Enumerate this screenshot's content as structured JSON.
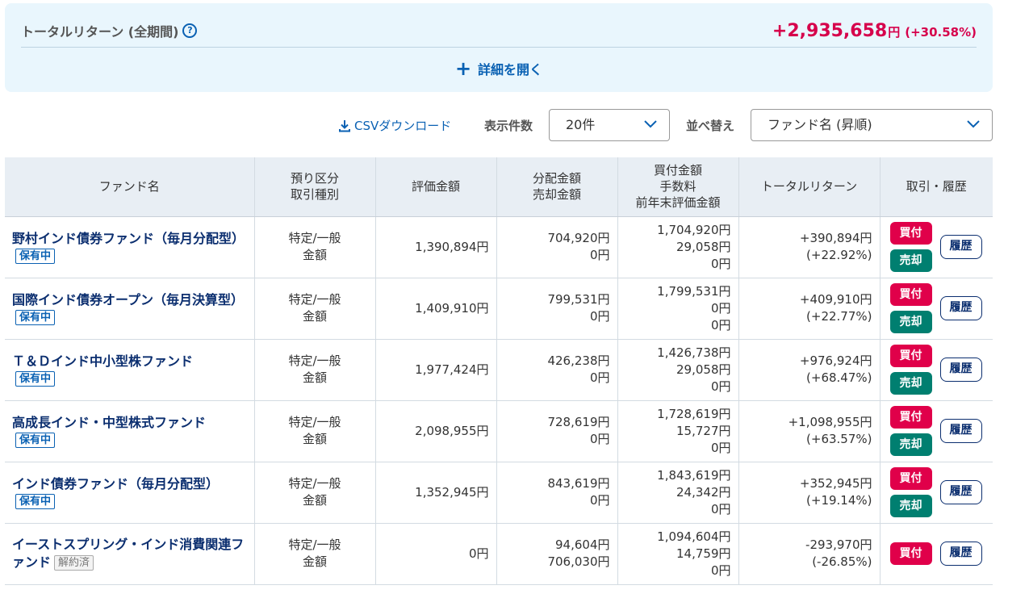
{
  "summary": {
    "label": "トータルリターン (全期間)",
    "help_glyph": "?",
    "amount": "+2,935,658",
    "unit": "円",
    "percent": "(+30.58%)",
    "expand_glyph": "+",
    "expand_label": "詳細を開く"
  },
  "toolbar": {
    "csv_label": "CSVダウンロード",
    "count_label": "表示件数",
    "count_value": "20件",
    "sort_label": "並べ替え",
    "sort_value": "ファンド名 (昇順)"
  },
  "table": {
    "headers": {
      "name": "ファンド名",
      "account_1": "預り区分",
      "account_2": "取引種別",
      "valuation": "評価金額",
      "dist_1": "分配金額",
      "dist_2": "売却金額",
      "buy_1": "買付金額",
      "buy_2": "手数料",
      "buy_3": "前年末評価金額",
      "total_return": "トータルリターン",
      "actions": "取引・履歴"
    },
    "buy_label": "買付",
    "sell_label": "売却",
    "history_label": "履歴",
    "rows": [
      {
        "name": "野村インド債券ファンド（毎月分配型）",
        "badge": "保有中",
        "account": "特定/一般",
        "type": "金額",
        "valuation": "1,390,894円",
        "distribution": "704,920円",
        "sold": "0円",
        "purchase": "1,704,920円",
        "fee": "29,058円",
        "prev_year": "0円",
        "return_amount": "+390,894円",
        "return_pct": "(+22.92%)"
      },
      {
        "name": "国際インド債券オープン（毎月決算型）",
        "badge": "保有中",
        "account": "特定/一般",
        "type": "金額",
        "valuation": "1,409,910円",
        "distribution": "799,531円",
        "sold": "0円",
        "purchase": "1,799,531円",
        "fee": "0円",
        "prev_year": "0円",
        "return_amount": "+409,910円",
        "return_pct": "(+22.77%)"
      },
      {
        "name": "Ｔ＆Ｄインド中小型株ファンド",
        "badge": "保有中",
        "account": "特定/一般",
        "type": "金額",
        "valuation": "1,977,424円",
        "distribution": "426,238円",
        "sold": "0円",
        "purchase": "1,426,738円",
        "fee": "29,058円",
        "prev_year": "0円",
        "return_amount": "+976,924円",
        "return_pct": "(+68.47%)"
      },
      {
        "name": "高成長インド・中型株式ファンド",
        "badge": "保有中",
        "account": "特定/一般",
        "type": "金額",
        "valuation": "2,098,955円",
        "distribution": "728,619円",
        "sold": "0円",
        "purchase": "1,728,619円",
        "fee": "15,727円",
        "prev_year": "0円",
        "return_amount": "+1,098,955円",
        "return_pct": "(+63.57%)"
      },
      {
        "name": "インド債券ファンド（毎月分配型）",
        "badge": "保有中",
        "account": "特定/一般",
        "type": "金額",
        "valuation": "1,352,945円",
        "distribution": "843,619円",
        "sold": "0円",
        "purchase": "1,843,619円",
        "fee": "24,342円",
        "prev_year": "0円",
        "return_amount": "+352,945円",
        "return_pct": "(+19.14%)"
      },
      {
        "name": "イーストスプリング・インド消費関連ファンド",
        "badge": "解約済",
        "account": "特定/一般",
        "type": "金額",
        "valuation": "0円",
        "distribution": "94,604円",
        "sold": "706,030円",
        "purchase": "1,094,604円",
        "fee": "14,759円",
        "prev_year": "0円",
        "return_amount": "-293,970円",
        "return_pct": "(-26.85%)"
      }
    ]
  },
  "colors": {
    "accent_blue": "#0a61b3",
    "positive": "#d6004b",
    "negative": "#0a8a7a",
    "buy_button": "#e0004a",
    "sell_button": "#007f70"
  }
}
